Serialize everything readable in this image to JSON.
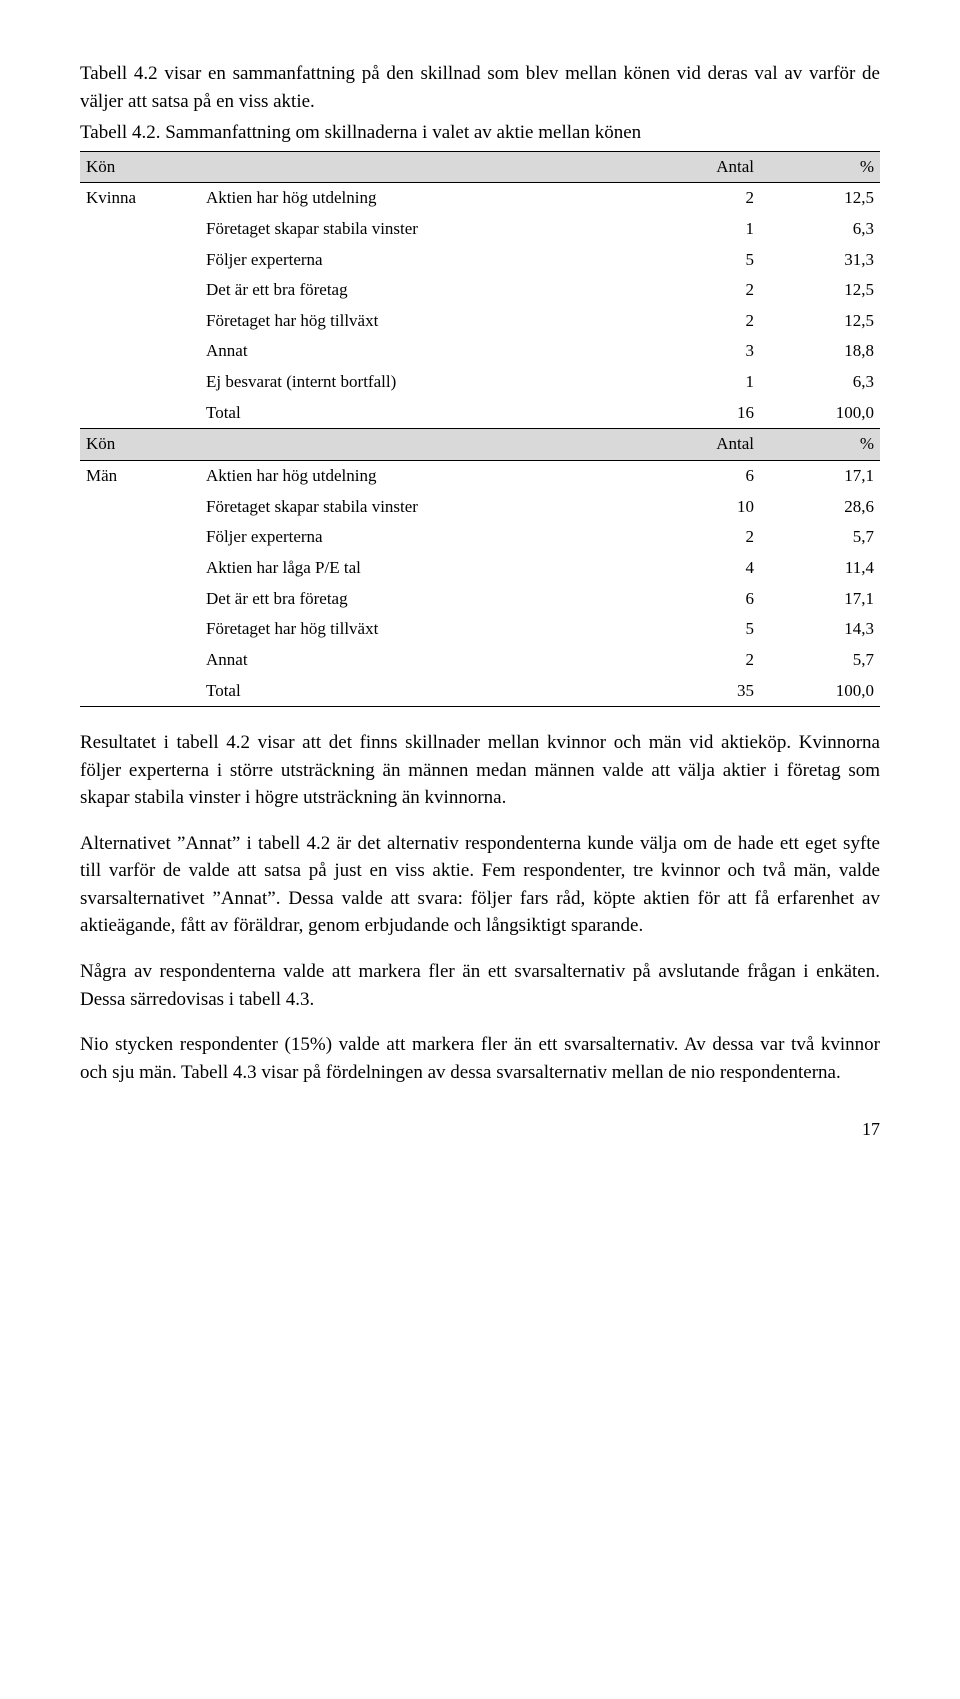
{
  "intro": "Tabell 4.2 visar en sammanfattning på den skillnad som blev mellan könen vid deras val av varför de väljer att satsa på en viss aktie.",
  "table_caption": "Tabell 4.2. Sammanfattning om skillnaderna i valet av aktie mellan könen",
  "headers": {
    "kon": "Kön",
    "antal": "Antal",
    "pct": "%"
  },
  "groups": [
    {
      "kon": "Kvinna",
      "rows": [
        {
          "label": "Aktien har hög utdelning",
          "n": "2",
          "p": "12,5"
        },
        {
          "label": "Företaget skapar stabila vinster",
          "n": "1",
          "p": "6,3"
        },
        {
          "label": "Följer experterna",
          "n": "5",
          "p": "31,3"
        },
        {
          "label": "Det är ett bra företag",
          "n": "2",
          "p": "12,5"
        },
        {
          "label": "Företaget har hög tillväxt",
          "n": "2",
          "p": "12,5"
        },
        {
          "label": "Annat",
          "n": "3",
          "p": "18,8"
        },
        {
          "label": "Ej besvarat (internt bortfall)",
          "n": "1",
          "p": "6,3"
        },
        {
          "label": "Total",
          "n": "16",
          "p": "100,0"
        }
      ]
    },
    {
      "kon": "Män",
      "rows": [
        {
          "label": "Aktien har hög utdelning",
          "n": "6",
          "p": "17,1"
        },
        {
          "label": "Företaget skapar stabila vinster",
          "n": "10",
          "p": "28,6"
        },
        {
          "label": "Följer experterna",
          "n": "2",
          "p": "5,7"
        },
        {
          "label": "Aktien har låga P/E tal",
          "n": "4",
          "p": "11,4"
        },
        {
          "label": "Det är ett bra företag",
          "n": "6",
          "p": "17,1"
        },
        {
          "label": "Företaget har hög tillväxt",
          "n": "5",
          "p": "14,3"
        },
        {
          "label": "Annat",
          "n": "2",
          "p": "5,7"
        },
        {
          "label": "Total",
          "n": "35",
          "p": "100,0"
        }
      ]
    }
  ],
  "para1": "Resultatet i tabell 4.2 visar att det finns skillnader mellan kvinnor och män vid aktieköp. Kvinnorna följer experterna i större utsträckning än männen medan männen valde att välja aktier i företag som skapar stabila vinster i högre utsträckning än kvinnorna.",
  "para2": "Alternativet ”Annat” i tabell 4.2 är det alternativ respondenterna kunde välja om de hade ett eget syfte till varför de valde att satsa på just en viss aktie. Fem respondenter, tre kvinnor och två män, valde svarsalternativet ”Annat”. Dessa valde att svara: följer fars råd, köpte aktien för att få erfarenhet av aktieägande, fått av föräldrar, genom erbjudande och långsiktigt sparande.",
  "para3": "Några av respondenterna valde att markera fler än ett svarsalternativ på avslutande frågan i enkäten. Dessa särredovisas i tabell 4.3.",
  "para4": "Nio stycken respondenter (15%) valde att markera fler än ett svarsalternativ. Av dessa var två kvinnor och sju män. Tabell 4.3 visar på fördelningen av dessa svarsalternativ mellan de nio respondenterna.",
  "pagenum": "17"
}
